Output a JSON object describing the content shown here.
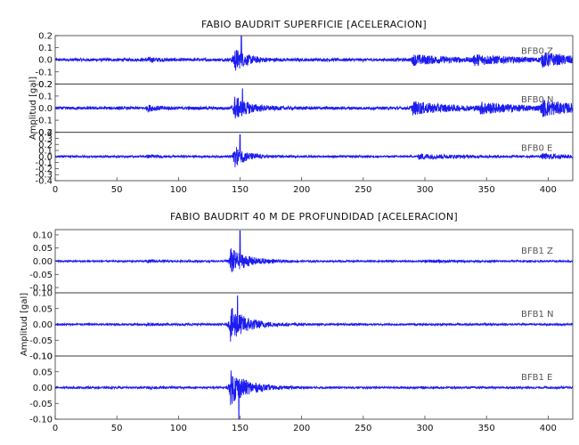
{
  "chart_data": [
    {
      "type": "line",
      "title": "FABIO BAUDRIT SUPERFICIE [ACELERACION]",
      "ylabel": "Amplitud [gal]",
      "xlim": [
        0,
        420
      ],
      "xticks": [
        "0",
        "50",
        "100",
        "150",
        "200",
        "250",
        "300",
        "350",
        "400"
      ],
      "line_color": "#1c1cf0",
      "grid": false,
      "series": [
        {
          "name": "BFB0   Z",
          "ylim": [
            -0.2,
            0.2
          ],
          "yticks": [
            "-0.2",
            "-0.1",
            "0.0",
            "0.1",
            "0.2"
          ],
          "noise": 0.012,
          "events": [
            {
              "t": 75,
              "amp": 0.015,
              "decay": 10
            },
            {
              "t": 145,
              "amp": 0.1,
              "decay": 10
            },
            {
              "t": 290,
              "amp": 0.04,
              "decay": 30
            },
            {
              "t": 340,
              "amp": 0.035,
              "decay": 30
            },
            {
              "t": 395,
              "amp": 0.05,
              "decay": 25
            }
          ],
          "peak_t": 151,
          "peak_v": 0.2
        },
        {
          "name": "BFB0   N",
          "ylim": [
            -0.2,
            0.2
          ],
          "yticks": [
            "-0.2",
            "-0.1",
            "0.0",
            "0.1",
            "0.2"
          ],
          "noise": 0.012,
          "events": [
            {
              "t": 75,
              "amp": 0.02,
              "decay": 10
            },
            {
              "t": 145,
              "amp": 0.1,
              "decay": 12
            },
            {
              "t": 290,
              "amp": 0.05,
              "decay": 30
            },
            {
              "t": 345,
              "amp": 0.04,
              "decay": 30
            },
            {
              "t": 395,
              "amp": 0.06,
              "decay": 25
            }
          ],
          "peak_t": 152,
          "peak_v": 0.16
        },
        {
          "name": "BFB0   E",
          "ylim": [
            -0.4,
            0.4
          ],
          "yticks": [
            "-0.4",
            "-0.3",
            "-0.2",
            "-0.1",
            "0.0",
            "0.1",
            "0.2",
            "0.3",
            "0.4"
          ],
          "noise": 0.015,
          "events": [
            {
              "t": 75,
              "amp": 0.02,
              "decay": 10
            },
            {
              "t": 145,
              "amp": 0.18,
              "decay": 10
            },
            {
              "t": 295,
              "amp": 0.04,
              "decay": 30
            },
            {
              "t": 395,
              "amp": 0.04,
              "decay": 25
            }
          ],
          "peak_t": 150,
          "peak_v": 0.36
        }
      ]
    },
    {
      "type": "line",
      "title": "FABIO BAUDRIT 40 M DE PROFUNDIDAD [ACELERACION]",
      "ylabel": "Amplitud [gal]",
      "xlim": [
        0,
        420
      ],
      "xticks": [
        "0",
        "50",
        "100",
        "150",
        "200",
        "250",
        "300",
        "350",
        "400"
      ],
      "line_color": "#1c1cf0",
      "grid": false,
      "series": [
        {
          "name": "BFB1   Z",
          "ylim": [
            -0.12,
            0.12
          ],
          "yticks": [
            "-0.10",
            "-0.05",
            "0.00",
            "0.05",
            "0.10"
          ],
          "noise": 0.003,
          "events": [
            {
              "t": 75,
              "amp": 0.004,
              "decay": 10
            },
            {
              "t": 142,
              "amp": 0.05,
              "decay": 14
            },
            {
              "t": 300,
              "amp": 0.004,
              "decay": 30
            }
          ],
          "peak_t": 150,
          "peak_v": 0.115
        },
        {
          "name": "BFB1   N",
          "ylim": [
            -0.1,
            0.1
          ],
          "yticks": [
            "-0.10",
            "-0.05",
            "0.00",
            "0.05",
            "0.10"
          ],
          "noise": 0.003,
          "events": [
            {
              "t": 75,
              "amp": 0.003,
              "decay": 10
            },
            {
              "t": 142,
              "amp": 0.055,
              "decay": 14
            }
          ],
          "peak_t": 148,
          "peak_v": 0.09
        },
        {
          "name": "BFB1   E",
          "ylim": [
            -0.1,
            0.1
          ],
          "yticks": [
            "-0.10",
            "-0.05",
            "0.00",
            "0.05",
            "0.10"
          ],
          "noise": 0.003,
          "events": [
            {
              "t": 75,
              "amp": 0.003,
              "decay": 10
            },
            {
              "t": 142,
              "amp": 0.055,
              "decay": 14
            }
          ],
          "peak_t": 149,
          "peak_v": -0.1
        }
      ]
    }
  ]
}
